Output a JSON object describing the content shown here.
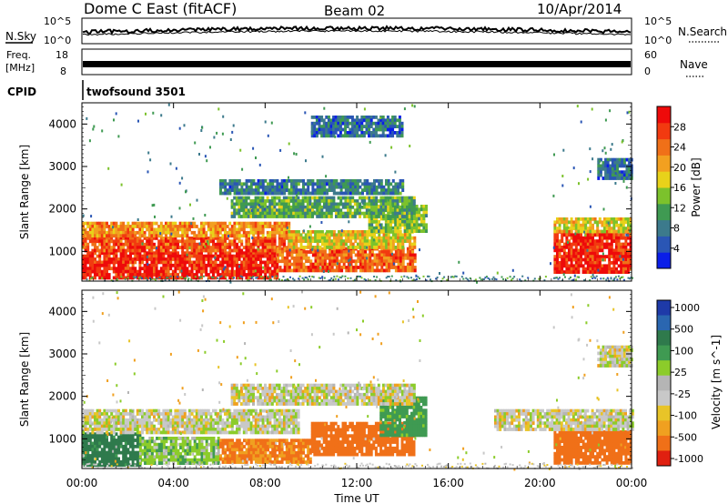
{
  "header": {
    "station": "Dome C East (fitACF)",
    "beam": "Beam 02",
    "date": "10/Apr/2014"
  },
  "noise_panel": {
    "left_label": "N.Sky",
    "right_label": "N.Search",
    "left_ticks": [
      "10^5",
      "10^0"
    ],
    "right_ticks": [
      "10^5",
      "10^0"
    ]
  },
  "freq_panel": {
    "left_label_line1": "Freq.",
    "left_label_line2": "[MHz]",
    "left_ticks": [
      "18",
      "8"
    ],
    "right_label": "Nave",
    "right_ticks": [
      "60",
      "0"
    ]
  },
  "cpid": {
    "label": "CPID",
    "value": "twofsound 3501"
  },
  "colors": {
    "power_scale": [
      "#0a1ee8",
      "#2a56b5",
      "#3c7a8c",
      "#3f9a52",
      "#7cc22c",
      "#e8d21a",
      "#f2a020",
      "#f07018",
      "#f23a10",
      "#ee0a0a"
    ],
    "velocity_scale": [
      "#1e3aa8",
      "#2a66b0",
      "#2f7a4c",
      "#3f9a52",
      "#8ccc2a",
      "#b5b5b5",
      "#c8c8c8",
      "#e8c428",
      "#f0a020",
      "#f07018",
      "#e02010"
    ]
  },
  "chart_data": [
    {
      "type": "heatmap",
      "panel": "power",
      "ylabel": "Slant Range [km]",
      "y_ticks": [
        "1000",
        "2000",
        "3000",
        "4000"
      ],
      "ylim": [
        300,
        4500
      ],
      "xlim_hours": [
        0,
        24
      ],
      "colorbar_label": "Power [dB]",
      "colorbar_ticks": [
        "4",
        "8",
        "12",
        "16",
        "20",
        "24",
        "28"
      ],
      "colorbar_range": [
        0,
        32
      ],
      "echo_regions": [
        {
          "t0": 0.0,
          "t1": 8.5,
          "r0": 380,
          "r1": 1000,
          "value": 29
        },
        {
          "t0": 0.0,
          "t1": 9.0,
          "r0": 1000,
          "r1": 1350,
          "value": 26
        },
        {
          "t0": 0.0,
          "t1": 9.0,
          "r0": 1350,
          "r1": 1700,
          "value": 22
        },
        {
          "t0": 8.5,
          "t1": 14.5,
          "r0": 550,
          "r1": 1100,
          "value": 25
        },
        {
          "t0": 9.0,
          "t1": 14.5,
          "r0": 1100,
          "r1": 1500,
          "value": 18
        },
        {
          "t0": 12.5,
          "t1": 15.0,
          "r0": 1500,
          "r1": 2100,
          "value": 14
        },
        {
          "t0": 6.5,
          "t1": 14.5,
          "r0": 1800,
          "r1": 2300,
          "value": 12
        },
        {
          "t0": 6.0,
          "t1": 14.0,
          "r0": 2400,
          "r1": 2700,
          "value": 8
        },
        {
          "t0": 10.0,
          "t1": 14.0,
          "r0": 3700,
          "r1": 4200,
          "value": 7
        },
        {
          "t0": 20.6,
          "t1": 24.0,
          "r0": 550,
          "r1": 1500,
          "value": 29
        },
        {
          "t0": 20.6,
          "t1": 24.0,
          "r0": 1500,
          "r1": 1800,
          "value": 18
        },
        {
          "t0": 22.5,
          "t1": 24.0,
          "r0": 2700,
          "r1": 3200,
          "value": 7
        }
      ]
    },
    {
      "type": "heatmap",
      "panel": "velocity",
      "ylabel": "Slant Range [km]",
      "xlabel": "Time UT",
      "x_ticks": [
        "00:00",
        "04:00",
        "08:00",
        "12:00",
        "16:00",
        "20:00",
        "00:00"
      ],
      "y_ticks": [
        "1000",
        "2000",
        "3000",
        "4000"
      ],
      "ylim": [
        300,
        4500
      ],
      "xlim_hours": [
        0,
        24
      ],
      "colorbar_label": "Velocity [m s^-1]",
      "colorbar_ticks": [
        "1000",
        "500",
        "100",
        "25",
        "-25",
        "-100",
        "-500",
        "-1000"
      ],
      "echo_regions": [
        {
          "t0": 0.0,
          "t1": 2.5,
          "r0": 380,
          "r1": 1150,
          "value": 300
        },
        {
          "t0": 2.5,
          "t1": 6.0,
          "r0": 420,
          "r1": 1050,
          "value": 80
        },
        {
          "t0": 6.0,
          "t1": 10.0,
          "r0": 450,
          "r1": 1000,
          "value": -120
        },
        {
          "t0": 10.0,
          "t1": 14.5,
          "r0": 650,
          "r1": 1400,
          "value": -200
        },
        {
          "t0": 13.0,
          "t1": 15.0,
          "r0": 1100,
          "r1": 2000,
          "value": 150
        },
        {
          "t0": 0.0,
          "t1": 9.5,
          "r0": 1150,
          "r1": 1700,
          "value": 10
        },
        {
          "t0": 6.5,
          "t1": 14.5,
          "r0": 1800,
          "r1": 2300,
          "value": 5
        },
        {
          "t0": 20.6,
          "t1": 24.0,
          "r0": 450,
          "r1": 1200,
          "value": -250
        },
        {
          "t0": 18.0,
          "t1": 24.0,
          "r0": 1250,
          "r1": 1700,
          "value": 5
        },
        {
          "t0": 22.5,
          "t1": 24.0,
          "r0": 2700,
          "r1": 3200,
          "value": 5
        }
      ]
    }
  ]
}
